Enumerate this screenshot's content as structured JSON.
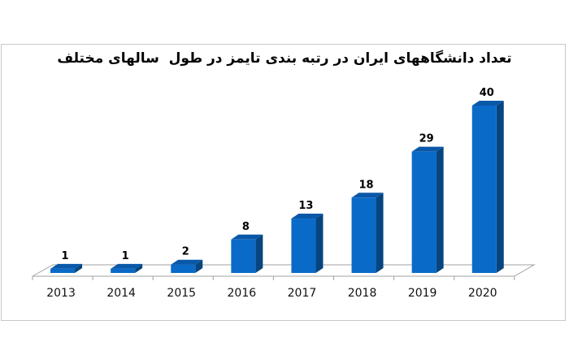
{
  "chart_data": {
    "type": "bar",
    "style": "3d-column",
    "title": "تعداد دانشگاههای ایران در رتبه بندی تایمز در طول  سالهای مختلف",
    "xlabel": "",
    "ylabel": "",
    "categories": [
      "2013",
      "2014",
      "2015",
      "2016",
      "2017",
      "2018",
      "2019",
      "2020"
    ],
    "values": [
      1,
      1,
      2,
      8,
      13,
      18,
      29,
      40
    ],
    "data_labels": [
      "1",
      "1",
      "2",
      "8",
      "13",
      "18",
      "29",
      "40"
    ],
    "ylim": [
      0,
      40
    ],
    "grid": false,
    "legend": null,
    "colors": {
      "bar_front": "#0a6ac8",
      "bar_side": "#06457f",
      "bar_top": "#0a58a8",
      "floor_line": "#a0a0a0"
    }
  }
}
